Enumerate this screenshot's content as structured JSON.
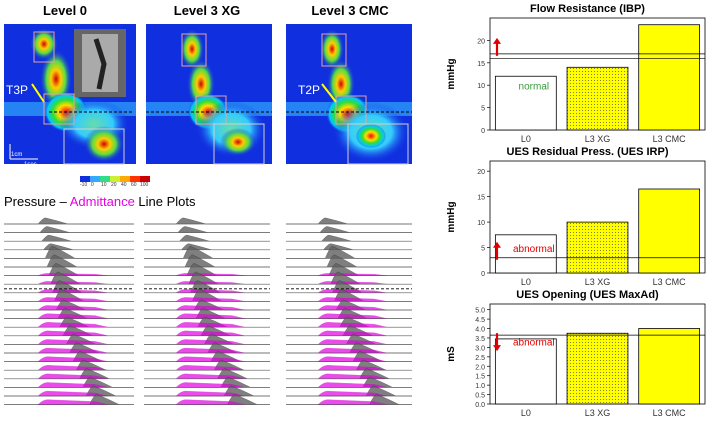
{
  "panels": {
    "titles": [
      "Level 0",
      "Level 3 XG",
      "Level 3 CMC"
    ],
    "annotations": {
      "t3p": "T3P",
      "t2p": "T2P",
      "scale_cm": "1cm",
      "scale_sec": "1sec"
    },
    "colorbar_ticks": [
      "-10",
      "0",
      "10",
      "20",
      "40",
      "60",
      "100"
    ]
  },
  "lineplots_title": {
    "part1": "Pressure – ",
    "part2": "Admittance",
    "part3": " Line Plots"
  },
  "colors": {
    "bg_blue": "#1030e0",
    "admittance": "#e400e4",
    "pressure": "#606060",
    "bar_yellow": "#ffff00",
    "arrow_red": "#e00000",
    "normal_green": "#3a9a3a",
    "abnormal_red": "#e00000"
  },
  "chart_data": [
    {
      "type": "bar",
      "title": "Flow Resistance (IBP)",
      "ylabel": "mmHg",
      "ylim": [
        0,
        25
      ],
      "yticks": [
        0,
        5,
        10,
        15,
        20
      ],
      "categories": [
        "L0",
        "L3 XG",
        "L3 CMC"
      ],
      "values": [
        12,
        14,
        23.5
      ],
      "threshold": 17,
      "threshold_secondary": 16,
      "status": "normal",
      "arrow": "up",
      "fills": [
        "white",
        "yellow-dotted",
        "yellow"
      ]
    },
    {
      "type": "bar",
      "title": "UES Residual Press. (UES IRP)",
      "ylabel": "mmHg",
      "ylim": [
        0,
        22
      ],
      "yticks": [
        0,
        5,
        10,
        15,
        20
      ],
      "categories": [
        "L0",
        "L3 XG",
        "L3 CMC"
      ],
      "values": [
        7.5,
        10,
        16.5
      ],
      "threshold": 3,
      "status": "abnormal",
      "arrow": "up",
      "fills": [
        "white",
        "yellow-dotted",
        "yellow"
      ]
    },
    {
      "type": "bar",
      "title": "UES Opening (UES MaxAd)",
      "ylabel": "mS",
      "ylim": [
        0,
        5.3
      ],
      "yticks": [
        0.0,
        0.5,
        1.0,
        1.5,
        2.0,
        2.5,
        3.0,
        3.5,
        4.0,
        4.5,
        5.0
      ],
      "yticklabels": [
        "0.0",
        "0.5",
        "1.0",
        "1.5",
        "2.0",
        "2.5",
        "3.0",
        "3.5",
        "4.0",
        "4.5",
        "5.0"
      ],
      "categories": [
        "L0",
        "L3 XG",
        "L3 CMC"
      ],
      "values": [
        3.45,
        3.75,
        4.0
      ],
      "threshold": 3.65,
      "status": "abnormal",
      "arrow": "down",
      "fills": [
        "white",
        "yellow-dotted",
        "yellow"
      ]
    }
  ]
}
